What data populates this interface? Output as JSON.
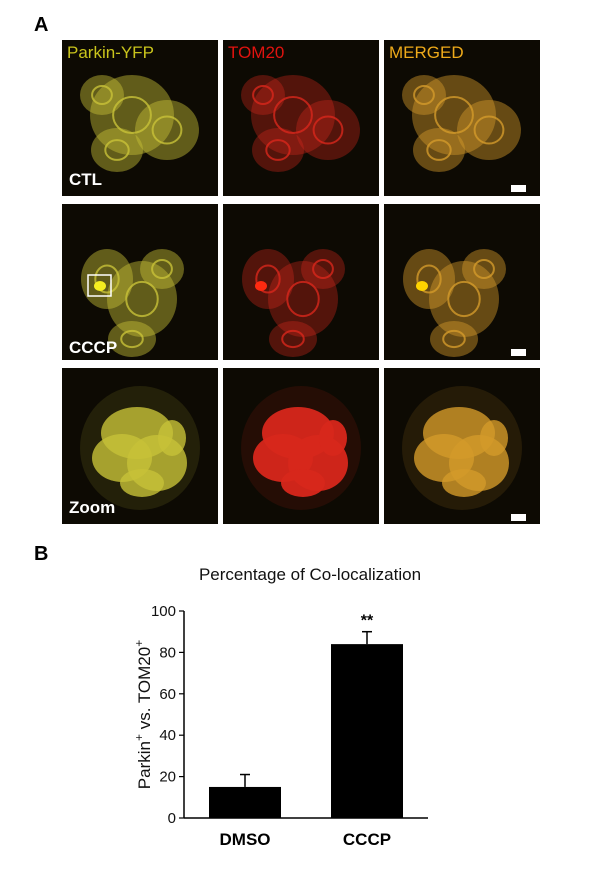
{
  "panel_a": {
    "letter": "A",
    "columns": [
      {
        "label": "Parkin-YFP",
        "color": "#c9c41c"
      },
      {
        "label": "TOM20",
        "color": "#e0130f"
      },
      {
        "label": "MERGED",
        "color": "#eeaa1a"
      }
    ],
    "rows": [
      {
        "label": "CTL"
      },
      {
        "label": "CCCP"
      },
      {
        "label": "Zoom"
      }
    ],
    "channel_colors": {
      "yfp": "#c8c238",
      "tom20": "#d8271c",
      "merged": "#d39a2a"
    }
  },
  "panel_b": {
    "letter": "B",
    "chart_data": {
      "type": "bar",
      "title": "Percentage of Co-localization",
      "ylabel_parts": [
        "Parkin",
        "+",
        " vs. TOM20",
        "+"
      ],
      "categories": [
        "DMSO",
        "CCCP"
      ],
      "values": [
        15,
        84
      ],
      "errors": [
        6,
        6
      ],
      "annotations": [
        {
          "category": "CCCP",
          "text": "**"
        }
      ],
      "ylim": [
        0,
        100
      ],
      "yticks": [
        0,
        20,
        40,
        60,
        80,
        100
      ],
      "bar_color": "#000000"
    }
  }
}
